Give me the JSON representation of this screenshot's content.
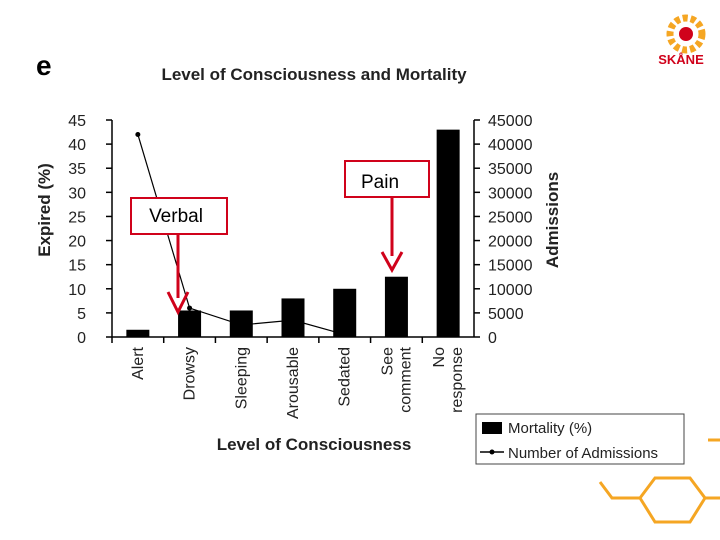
{
  "slide": {
    "panel_letter": "e",
    "logo_text": "SKÅNE",
    "accent_color": "#f5a623",
    "logo_red": "#d0021b"
  },
  "callouts": [
    {
      "label": "Verbal",
      "target_category": "Drowsy"
    },
    {
      "label": "Pain",
      "target_category": "See comment"
    }
  ],
  "chart_data": {
    "type": "bar",
    "title": "Level of Consciousness and Mortality",
    "xlabel": "Level of Consciousness",
    "ylabel_left": "Expired (%)",
    "ylabel_right": "Admissions",
    "categories": [
      "Alert",
      "Drowsy",
      "Sleeping",
      "Arousable",
      "Sedated",
      "See comment",
      "No response"
    ],
    "category_lines": [
      [
        "Alert"
      ],
      [
        "Drowsy"
      ],
      [
        "Sleeping"
      ],
      [
        "Arousable"
      ],
      [
        "Sedated"
      ],
      [
        "See",
        "comment"
      ],
      [
        "No",
        "response"
      ]
    ],
    "ylim_left": [
      0,
      45
    ],
    "yticks_left": [
      0,
      5,
      10,
      15,
      20,
      25,
      30,
      35,
      40,
      45
    ],
    "ylim_right": [
      0,
      45000
    ],
    "yticks_right": [
      0,
      5000,
      10000,
      15000,
      20000,
      25000,
      30000,
      35000,
      40000,
      45000
    ],
    "series": [
      {
        "name": "Mortality (%)",
        "type": "bar",
        "axis": "left",
        "color": "#000000",
        "values": [
          1.5,
          5.5,
          5.5,
          8,
          10,
          12.5,
          43
        ]
      },
      {
        "name": "Number of Admissions",
        "type": "line",
        "axis": "right",
        "color": "#000000",
        "values": [
          42000,
          6000,
          2500,
          3500,
          500,
          null,
          null
        ]
      }
    ],
    "legend_position": "bottom-right",
    "grid": false
  }
}
